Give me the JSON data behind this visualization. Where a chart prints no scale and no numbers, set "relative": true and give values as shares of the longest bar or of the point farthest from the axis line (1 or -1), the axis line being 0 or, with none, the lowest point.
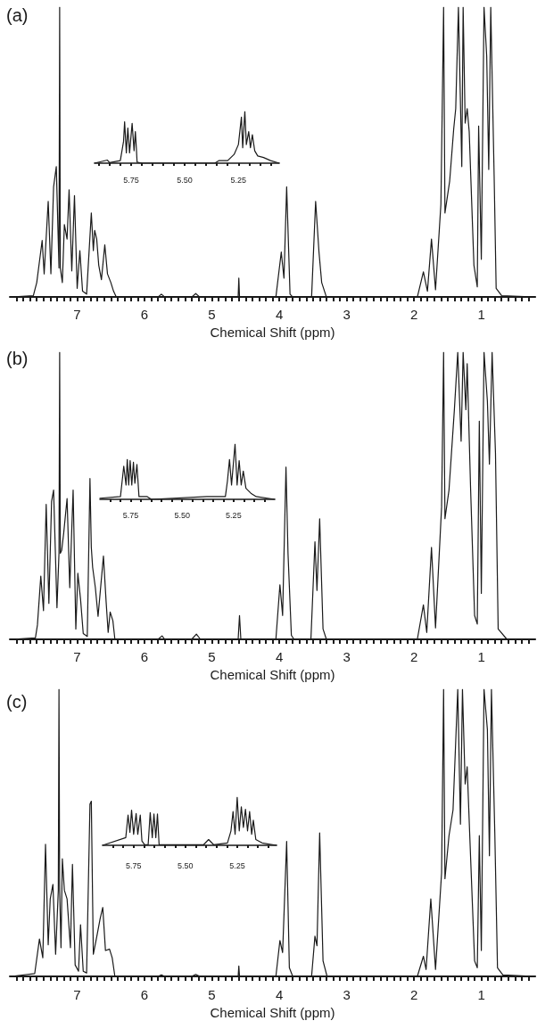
{
  "chart_data": [
    {
      "type": "line",
      "title": "(a)",
      "xlabel": "Chemical Shift (ppm)",
      "relative": true,
      "color": "#1a1a1a",
      "xlim": [
        8.0,
        0.2
      ],
      "xticks": [
        7,
        6,
        5,
        4,
        3,
        2,
        1,
        {
          "value": 7.9,
          "label": null
        },
        {
          "value": 7.8,
          "label": null
        },
        {
          "value": 7.7,
          "label": null
        },
        {
          "value": 7.6,
          "label": null
        },
        {
          "value": 7.5,
          "label": null
        },
        {
          "value": 7.4,
          "label": null
        },
        {
          "value": 7.3,
          "label": null
        },
        {
          "value": 7.2,
          "label": null
        },
        {
          "value": 7.1,
          "label": null
        },
        {
          "value": 6.9,
          "label": null
        },
        {
          "value": 6.8,
          "label": null
        },
        {
          "value": 6.7,
          "label": null
        },
        {
          "value": 6.6,
          "label": null
        },
        {
          "value": 6.5,
          "label": null
        },
        {
          "value": 6.4,
          "label": null
        },
        {
          "value": 6.3,
          "label": null
        },
        {
          "value": 6.2,
          "label": null
        },
        {
          "value": 6.1,
          "label": null
        },
        {
          "value": 5.9,
          "label": null
        },
        {
          "value": 5.8,
          "label": null
        },
        {
          "value": 5.7,
          "label": null
        },
        {
          "value": 5.6,
          "label": null
        },
        {
          "value": 5.5,
          "label": null
        },
        {
          "value": 5.4,
          "label": null
        },
        {
          "value": 5.3,
          "label": null
        },
        {
          "value": 5.2,
          "label": null
        },
        {
          "value": 5.1,
          "label": null
        },
        {
          "value": 4.9,
          "label": null
        },
        {
          "value": 4.8,
          "label": null
        },
        {
          "value": 4.7,
          "label": null
        },
        {
          "value": 4.6,
          "label": null
        },
        {
          "value": 4.5,
          "label": null
        },
        {
          "value": 4.4,
          "label": null
        },
        {
          "value": 4.3,
          "label": null
        },
        {
          "value": 4.2,
          "label": null
        },
        {
          "value": 4.1,
          "label": null
        },
        {
          "value": 3.9,
          "label": null
        },
        {
          "value": 3.8,
          "label": null
        },
        {
          "value": 3.7,
          "label": null
        },
        {
          "value": 3.6,
          "label": null
        },
        {
          "value": 3.5,
          "label": null
        },
        {
          "value": 3.4,
          "label": null
        },
        {
          "value": 3.3,
          "label": null
        },
        {
          "value": 3.2,
          "label": null
        },
        {
          "value": 3.1,
          "label": null
        },
        {
          "value": 2.9,
          "label": null
        },
        {
          "value": 2.8,
          "label": null
        },
        {
          "value": 2.7,
          "label": null
        },
        {
          "value": 2.6,
          "label": null
        },
        {
          "value": 2.5,
          "label": null
        },
        {
          "value": 2.4,
          "label": null
        },
        {
          "value": 2.3,
          "label": null
        },
        {
          "value": 2.2,
          "label": null
        },
        {
          "value": 2.1,
          "label": null
        },
        {
          "value": 1.9,
          "label": null
        },
        {
          "value": 1.8,
          "label": null
        },
        {
          "value": 1.7,
          "label": null
        },
        {
          "value": 1.6,
          "label": null
        },
        {
          "value": 1.5,
          "label": null
        },
        {
          "value": 1.4,
          "label": null
        },
        {
          "value": 1.3,
          "label": null
        },
        {
          "value": 1.2,
          "label": null
        },
        {
          "value": 1.1,
          "label": null
        },
        {
          "value": 0.9,
          "label": null
        },
        {
          "value": 0.8,
          "label": null
        },
        {
          "value": 0.7,
          "label": null
        },
        {
          "value": 0.6,
          "label": null
        },
        {
          "value": 0.5,
          "label": null
        },
        {
          "value": 0.4,
          "label": null
        },
        {
          "value": 0.3,
          "label": null
        }
      ],
      "x": [
        7.98,
        7.65,
        7.6,
        7.52,
        7.49,
        7.43,
        7.39,
        7.35,
        7.31,
        7.27,
        7.26,
        7.25,
        7.22,
        7.19,
        7.15,
        7.12,
        7.08,
        7.04,
        7.0,
        6.96,
        6.92,
        6.86,
        6.79,
        6.76,
        6.74,
        6.71,
        6.68,
        6.64,
        6.59,
        6.55,
        6.5,
        6.46,
        6.42,
        5.8,
        5.75,
        5.7,
        5.3,
        5.24,
        5.18,
        4.61,
        4.6,
        4.59,
        4.05,
        3.97,
        3.93,
        3.89,
        3.84,
        3.8,
        3.52,
        3.46,
        3.41,
        3.37,
        3.3,
        1.95,
        1.86,
        1.8,
        1.74,
        1.68,
        1.6,
        1.56,
        1.54,
        1.47,
        1.41,
        1.38,
        1.34,
        1.29,
        1.27,
        1.24,
        1.21,
        1.18,
        1.11,
        1.06,
        1.04,
        1.0,
        0.96,
        0.92,
        0.89,
        0.86,
        0.81,
        0.78,
        0.7,
        0.2
      ],
      "values": [
        0,
        0.005,
        0.05,
        0.195,
        0.08,
        0.33,
        0.08,
        0.38,
        0.45,
        0.1,
        1,
        0.1,
        0.05,
        0.25,
        0.2,
        0.37,
        0.09,
        0.35,
        0.03,
        0.16,
        0.02,
        0.01,
        0.29,
        0.16,
        0.23,
        0.2,
        0.11,
        0.06,
        0.18,
        0.08,
        0.05,
        0.02,
        0,
        0,
        0.01,
        0,
        0,
        0.012,
        0,
        0,
        0.065,
        0,
        0,
        0.155,
        0.065,
        0.38,
        0.01,
        0,
        0,
        0.33,
        0.155,
        0.05,
        0,
        0,
        0.087,
        0.02,
        0.2,
        0.025,
        0.32,
        1,
        0.29,
        0.4,
        0.58,
        0.65,
        1,
        0.45,
        1,
        0.6,
        0.65,
        0.57,
        0.11,
        0.035,
        0.59,
        0.13,
        1,
        0.83,
        0.44,
        1,
        0.42,
        0.03,
        0.005,
        0
      ]
    },
    {
      "type": "line",
      "relative": true,
      "color": "#1a1a1a",
      "xlim": [
        5.92,
        5.06
      ],
      "xticks": [
        {
          "value": 5.75,
          "label": "5.75"
        },
        {
          "value": 5.5,
          "label": "5.50"
        },
        {
          "value": 5.25,
          "label": "5.25"
        },
        {
          "value": 5.9,
          "label": null
        },
        {
          "value": 5.85,
          "label": null
        },
        {
          "value": 5.8,
          "label": null
        },
        {
          "value": 5.7,
          "label": null
        },
        {
          "value": 5.65,
          "label": null
        },
        {
          "value": 5.6,
          "label": null
        },
        {
          "value": 5.55,
          "label": null
        },
        {
          "value": 5.45,
          "label": null
        },
        {
          "value": 5.4,
          "label": null
        },
        {
          "value": 5.35,
          "label": null
        },
        {
          "value": 5.3,
          "label": null
        },
        {
          "value": 5.2,
          "label": null
        },
        {
          "value": 5.15,
          "label": null
        },
        {
          "value": 5.1,
          "label": null
        }
      ],
      "x": [
        5.92,
        5.86,
        5.85,
        5.8,
        5.785,
        5.78,
        5.772,
        5.765,
        5.757,
        5.745,
        5.736,
        5.73,
        5.725,
        5.722,
        5.7,
        5.5,
        5.36,
        5.34,
        5.3,
        5.27,
        5.25,
        5.236,
        5.23,
        5.22,
        5.213,
        5.202,
        5.194,
        5.185,
        5.174,
        5.16,
        5.133,
        5.1,
        5.06
      ],
      "values": [
        0,
        0.06,
        0.01,
        0.05,
        0.42,
        0.8,
        0.2,
        0.68,
        0.2,
        0.77,
        0.24,
        0.61,
        0.27,
        0.02,
        0,
        0,
        0,
        0.05,
        0.05,
        0.17,
        0.36,
        0.89,
        0.3,
        1,
        0.36,
        0.61,
        0.3,
        0.55,
        0.24,
        0.14,
        0.11,
        0.05,
        0
      ]
    },
    {
      "type": "line",
      "title": "(b)",
      "xlabel": "Chemical Shift (ppm)",
      "relative": true,
      "color": "#1a1a1a",
      "xlim": [
        8.0,
        0.2
      ],
      "xticks": [
        7,
        6,
        5,
        4,
        3,
        2,
        1,
        {
          "value": 7.9,
          "label": null
        },
        {
          "value": 7.8,
          "label": null
        },
        {
          "value": 7.7,
          "label": null
        },
        {
          "value": 7.6,
          "label": null
        },
        {
          "value": 7.5,
          "label": null
        },
        {
          "value": 7.4,
          "label": null
        },
        {
          "value": 7.3,
          "label": null
        },
        {
          "value": 7.2,
          "label": null
        },
        {
          "value": 7.1,
          "label": null
        },
        {
          "value": 6.9,
          "label": null
        },
        {
          "value": 6.8,
          "label": null
        },
        {
          "value": 6.7,
          "label": null
        },
        {
          "value": 6.6,
          "label": null
        },
        {
          "value": 6.5,
          "label": null
        },
        {
          "value": 6.4,
          "label": null
        },
        {
          "value": 6.3,
          "label": null
        },
        {
          "value": 6.2,
          "label": null
        },
        {
          "value": 6.1,
          "label": null
        },
        {
          "value": 5.9,
          "label": null
        },
        {
          "value": 5.8,
          "label": null
        },
        {
          "value": 5.7,
          "label": null
        },
        {
          "value": 5.6,
          "label": null
        },
        {
          "value": 5.5,
          "label": null
        },
        {
          "value": 5.4,
          "label": null
        },
        {
          "value": 5.3,
          "label": null
        },
        {
          "value": 5.2,
          "label": null
        },
        {
          "value": 5.1,
          "label": null
        },
        {
          "value": 4.9,
          "label": null
        },
        {
          "value": 4.8,
          "label": null
        },
        {
          "value": 4.7,
          "label": null
        },
        {
          "value": 4.6,
          "label": null
        },
        {
          "value": 4.5,
          "label": null
        },
        {
          "value": 4.4,
          "label": null
        },
        {
          "value": 4.3,
          "label": null
        },
        {
          "value": 4.2,
          "label": null
        },
        {
          "value": 4.1,
          "label": null
        },
        {
          "value": 3.9,
          "label": null
        },
        {
          "value": 3.8,
          "label": null
        },
        {
          "value": 3.7,
          "label": null
        },
        {
          "value": 3.6,
          "label": null
        },
        {
          "value": 3.5,
          "label": null
        },
        {
          "value": 3.4,
          "label": null
        },
        {
          "value": 3.3,
          "label": null
        },
        {
          "value": 3.2,
          "label": null
        },
        {
          "value": 3.1,
          "label": null
        },
        {
          "value": 2.9,
          "label": null
        },
        {
          "value": 2.8,
          "label": null
        },
        {
          "value": 2.7,
          "label": null
        },
        {
          "value": 2.6,
          "label": null
        },
        {
          "value": 2.5,
          "label": null
        },
        {
          "value": 2.4,
          "label": null
        },
        {
          "value": 2.3,
          "label": null
        },
        {
          "value": 2.2,
          "label": null
        },
        {
          "value": 2.1,
          "label": null
        },
        {
          "value": 1.9,
          "label": null
        },
        {
          "value": 1.8,
          "label": null
        },
        {
          "value": 1.7,
          "label": null
        },
        {
          "value": 1.6,
          "label": null
        },
        {
          "value": 1.5,
          "label": null
        },
        {
          "value": 1.4,
          "label": null
        },
        {
          "value": 1.3,
          "label": null
        },
        {
          "value": 1.2,
          "label": null
        },
        {
          "value": 1.1,
          "label": null
        },
        {
          "value": 0.9,
          "label": null
        },
        {
          "value": 0.8,
          "label": null
        },
        {
          "value": 0.7,
          "label": null
        },
        {
          "value": 0.6,
          "label": null
        },
        {
          "value": 0.5,
          "label": null
        },
        {
          "value": 0.4,
          "label": null
        },
        {
          "value": 0.3,
          "label": null
        }
      ],
      "x": [
        7.98,
        7.62,
        7.59,
        7.54,
        7.5,
        7.46,
        7.42,
        7.38,
        7.35,
        7.3,
        7.27,
        7.26,
        7.25,
        7.23,
        7.2,
        7.15,
        7.11,
        7.06,
        7.02,
        6.99,
        6.95,
        6.91,
        6.85,
        6.81,
        6.79,
        6.77,
        6.73,
        6.69,
        6.61,
        6.57,
        6.54,
        6.51,
        6.47,
        6.44,
        5.8,
        5.74,
        5.7,
        5.3,
        5.23,
        5.17,
        4.61,
        4.59,
        4.57,
        4.05,
        3.99,
        3.95,
        3.9,
        3.87,
        3.82,
        3.78,
        3.53,
        3.47,
        3.44,
        3.4,
        3.35,
        3.3,
        1.95,
        1.86,
        1.81,
        1.74,
        1.68,
        1.59,
        1.56,
        1.54,
        1.48,
        1.4,
        1.35,
        1.3,
        1.27,
        1.23,
        1.21,
        1.16,
        1.1,
        1.06,
        1.03,
        1.0,
        0.96,
        0.91,
        0.88,
        0.84,
        0.79,
        0.75,
        0.62,
        0.2
      ],
      "values": [
        0,
        0.005,
        0.05,
        0.22,
        0.1,
        0.47,
        0.125,
        0.48,
        0.52,
        0.11,
        0.3,
        1,
        0.3,
        0.31,
        0.37,
        0.49,
        0.18,
        0.52,
        0.036,
        0.23,
        0.14,
        0.02,
        0.01,
        0.56,
        0.32,
        0.25,
        0.18,
        0.08,
        0.29,
        0.13,
        0.024,
        0.095,
        0.065,
        0,
        0,
        0.012,
        0,
        0,
        0.018,
        0,
        0,
        0.083,
        0,
        0,
        0.19,
        0.083,
        0.6,
        0.3,
        0.014,
        0,
        0,
        0.34,
        0.17,
        0.42,
        0.036,
        0,
        0,
        0.12,
        0.024,
        0.32,
        0.04,
        0.46,
        1,
        0.42,
        0.52,
        0.8,
        1,
        0.69,
        1,
        0.8,
        0.96,
        0.53,
        0.083,
        0.053,
        0.76,
        0.16,
        1,
        0.83,
        0.61,
        1,
        0.65,
        0.036,
        0,
        0
      ]
    },
    {
      "type": "line",
      "relative": true,
      "color": "#1a1a1a",
      "xlim": [
        5.9,
        5.05
      ],
      "xticks": [
        {
          "value": 5.75,
          "label": "5.75"
        },
        {
          "value": 5.5,
          "label": "5.50"
        },
        {
          "value": 5.25,
          "label": "5.25"
        },
        {
          "value": 5.85,
          "label": null
        },
        {
          "value": 5.8,
          "label": null
        },
        {
          "value": 5.7,
          "label": null
        },
        {
          "value": 5.65,
          "label": null
        },
        {
          "value": 5.6,
          "label": null
        },
        {
          "value": 5.55,
          "label": null
        },
        {
          "value": 5.45,
          "label": null
        },
        {
          "value": 5.4,
          "label": null
        },
        {
          "value": 5.35,
          "label": null
        },
        {
          "value": 5.3,
          "label": null
        },
        {
          "value": 5.2,
          "label": null
        },
        {
          "value": 5.15,
          "label": null
        },
        {
          "value": 5.1,
          "label": null
        }
      ],
      "x": [
        5.9,
        5.8,
        5.784,
        5.773,
        5.767,
        5.76,
        5.753,
        5.745,
        5.737,
        5.73,
        5.72,
        5.71,
        5.67,
        5.65,
        5.38,
        5.29,
        5.28,
        5.27,
        5.26,
        5.243,
        5.233,
        5.223,
        5.213,
        5.203,
        5.19,
        5.166,
        5.14,
        5.05
      ],
      "values": [
        0.02,
        0.05,
        0.6,
        0.26,
        0.72,
        0.26,
        0.7,
        0.26,
        0.67,
        0.29,
        0.63,
        0.05,
        0.05,
        0,
        0.05,
        0.05,
        0.33,
        0.72,
        0.26,
        1,
        0.26,
        0.7,
        0.26,
        0.51,
        0.2,
        0.11,
        0.05,
        0
      ]
    },
    {
      "type": "line",
      "title": "(c)",
      "xlabel": "Chemical Shift (ppm)",
      "relative": true,
      "color": "#1a1a1a",
      "xlim": [
        8.0,
        0.2
      ],
      "xticks": [
        7,
        6,
        5,
        4,
        3,
        2,
        1,
        {
          "value": 7.9,
          "label": null
        },
        {
          "value": 7.8,
          "label": null
        },
        {
          "value": 7.7,
          "label": null
        },
        {
          "value": 7.6,
          "label": null
        },
        {
          "value": 7.5,
          "label": null
        },
        {
          "value": 7.4,
          "label": null
        },
        {
          "value": 7.3,
          "label": null
        },
        {
          "value": 7.2,
          "label": null
        },
        {
          "value": 7.1,
          "label": null
        },
        {
          "value": 6.9,
          "label": null
        },
        {
          "value": 6.8,
          "label": null
        },
        {
          "value": 6.7,
          "label": null
        },
        {
          "value": 6.6,
          "label": null
        },
        {
          "value": 6.5,
          "label": null
        },
        {
          "value": 6.4,
          "label": null
        },
        {
          "value": 6.3,
          "label": null
        },
        {
          "value": 6.2,
          "label": null
        },
        {
          "value": 6.1,
          "label": null
        },
        {
          "value": 5.9,
          "label": null
        },
        {
          "value": 5.8,
          "label": null
        },
        {
          "value": 5.7,
          "label": null
        },
        {
          "value": 5.6,
          "label": null
        },
        {
          "value": 5.5,
          "label": null
        },
        {
          "value": 5.4,
          "label": null
        },
        {
          "value": 5.3,
          "label": null
        },
        {
          "value": 5.2,
          "label": null
        },
        {
          "value": 5.1,
          "label": null
        },
        {
          "value": 4.9,
          "label": null
        },
        {
          "value": 4.8,
          "label": null
        },
        {
          "value": 4.7,
          "label": null
        },
        {
          "value": 4.6,
          "label": null
        },
        {
          "value": 4.5,
          "label": null
        },
        {
          "value": 4.4,
          "label": null
        },
        {
          "value": 4.3,
          "label": null
        },
        {
          "value": 4.2,
          "label": null
        },
        {
          "value": 4.1,
          "label": null
        },
        {
          "value": 3.9,
          "label": null
        },
        {
          "value": 3.8,
          "label": null
        },
        {
          "value": 3.7,
          "label": null
        },
        {
          "value": 3.6,
          "label": null
        },
        {
          "value": 3.5,
          "label": null
        },
        {
          "value": 3.4,
          "label": null
        },
        {
          "value": 3.3,
          "label": null
        },
        {
          "value": 3.2,
          "label": null
        },
        {
          "value": 3.1,
          "label": null
        },
        {
          "value": 2.9,
          "label": null
        },
        {
          "value": 2.8,
          "label": null
        },
        {
          "value": 2.7,
          "label": null
        },
        {
          "value": 2.6,
          "label": null
        },
        {
          "value": 2.5,
          "label": null
        },
        {
          "value": 2.4,
          "label": null
        },
        {
          "value": 2.3,
          "label": null
        },
        {
          "value": 2.2,
          "label": null
        },
        {
          "value": 2.1,
          "label": null
        },
        {
          "value": 1.9,
          "label": null
        },
        {
          "value": 1.8,
          "label": null
        },
        {
          "value": 1.7,
          "label": null
        },
        {
          "value": 1.6,
          "label": null
        },
        {
          "value": 1.5,
          "label": null
        },
        {
          "value": 1.4,
          "label": null
        },
        {
          "value": 1.3,
          "label": null
        },
        {
          "value": 1.2,
          "label": null
        },
        {
          "value": 1.1,
          "label": null
        },
        {
          "value": 0.9,
          "label": null
        },
        {
          "value": 0.8,
          "label": null
        },
        {
          "value": 0.7,
          "label": null
        },
        {
          "value": 0.6,
          "label": null
        },
        {
          "value": 0.5,
          "label": null
        },
        {
          "value": 0.4,
          "label": null
        },
        {
          "value": 0.3,
          "label": null
        }
      ],
      "x": [
        7.98,
        7.63,
        7.56,
        7.51,
        7.47,
        7.43,
        7.4,
        7.36,
        7.32,
        7.28,
        7.27,
        7.26,
        7.24,
        7.22,
        7.19,
        7.15,
        7.1,
        7.07,
        7.03,
        6.98,
        6.95,
        6.91,
        6.86,
        6.81,
        6.79,
        6.76,
        6.71,
        6.66,
        6.62,
        6.58,
        6.52,
        6.48,
        6.44,
        5.8,
        5.75,
        5.7,
        5.3,
        5.24,
        5.18,
        4.61,
        4.6,
        4.59,
        4.05,
        3.99,
        3.95,
        3.89,
        3.85,
        3.8,
        3.52,
        3.47,
        3.44,
        3.4,
        3.35,
        3.29,
        1.95,
        1.86,
        1.82,
        1.75,
        1.68,
        1.59,
        1.56,
        1.54,
        1.48,
        1.42,
        1.35,
        1.31,
        1.28,
        1.24,
        1.21,
        1.17,
        1.1,
        1.06,
        1.03,
        1.0,
        0.96,
        0.91,
        0.88,
        0.85,
        0.8,
        0.76,
        0.68,
        0.2
      ],
      "values": [
        0,
        0.01,
        0.13,
        0.065,
        0.46,
        0.11,
        0.27,
        0.32,
        0.077,
        0.3,
        1,
        0.3,
        0.1,
        0.41,
        0.3,
        0.27,
        0.1,
        0.39,
        0.04,
        0.018,
        0.18,
        0.018,
        0.012,
        0.6,
        0.61,
        0.077,
        0.137,
        0.2,
        0.24,
        0.09,
        0.095,
        0.065,
        0,
        0,
        0.005,
        0,
        0,
        0.007,
        0,
        0,
        0.036,
        0,
        0,
        0.125,
        0.083,
        0.47,
        0.03,
        0,
        0,
        0.14,
        0.107,
        0.5,
        0.054,
        0,
        0,
        0.07,
        0.024,
        0.27,
        0.024,
        0.36,
        1,
        0.34,
        0.49,
        0.58,
        1,
        0.53,
        1,
        0.67,
        0.73,
        0.48,
        0.054,
        0.03,
        0.49,
        0.09,
        1,
        0.86,
        0.42,
        1,
        0.5,
        0.03,
        0.005,
        0
      ]
    },
    {
      "type": "line",
      "relative": true,
      "color": "#1a1a1a",
      "xlim": [
        5.9,
        5.06
      ],
      "xticks": [
        {
          "value": 5.75,
          "label": "5.75"
        },
        {
          "value": 5.5,
          "label": "5.50"
        },
        {
          "value": 5.25,
          "label": "5.25"
        },
        {
          "value": 5.85,
          "label": null
        },
        {
          "value": 5.8,
          "label": null
        },
        {
          "value": 5.7,
          "label": null
        },
        {
          "value": 5.65,
          "label": null
        },
        {
          "value": 5.6,
          "label": null
        },
        {
          "value": 5.55,
          "label": null
        },
        {
          "value": 5.45,
          "label": null
        },
        {
          "value": 5.4,
          "label": null
        },
        {
          "value": 5.35,
          "label": null
        },
        {
          "value": 5.3,
          "label": null
        },
        {
          "value": 5.2,
          "label": null
        },
        {
          "value": 5.15,
          "label": null
        },
        {
          "value": 5.1,
          "label": null
        }
      ],
      "x": [
        5.9,
        5.788,
        5.777,
        5.768,
        5.76,
        5.75,
        5.738,
        5.73,
        5.718,
        5.71,
        5.697,
        5.68,
        5.67,
        5.66,
        5.652,
        5.643,
        5.635,
        5.627,
        5.413,
        5.388,
        5.363,
        5.297,
        5.28,
        5.27,
        5.26,
        5.25,
        5.24,
        5.23,
        5.22,
        5.21,
        5.2,
        5.19,
        5.18,
        5.172,
        5.16,
        5.13,
        5.06
      ],
      "values": [
        0,
        0.16,
        0.63,
        0.27,
        0.73,
        0.23,
        0.66,
        0.23,
        0.63,
        0.09,
        0.01,
        0.01,
        0.68,
        0.16,
        0.65,
        0.16,
        0.65,
        0.01,
        0.01,
        0.12,
        0.01,
        0.05,
        0.3,
        0.7,
        0.23,
        1,
        0.3,
        0.8,
        0.37,
        0.75,
        0.3,
        0.7,
        0.23,
        0.52,
        0.12,
        0.05,
        0
      ]
    }
  ]
}
